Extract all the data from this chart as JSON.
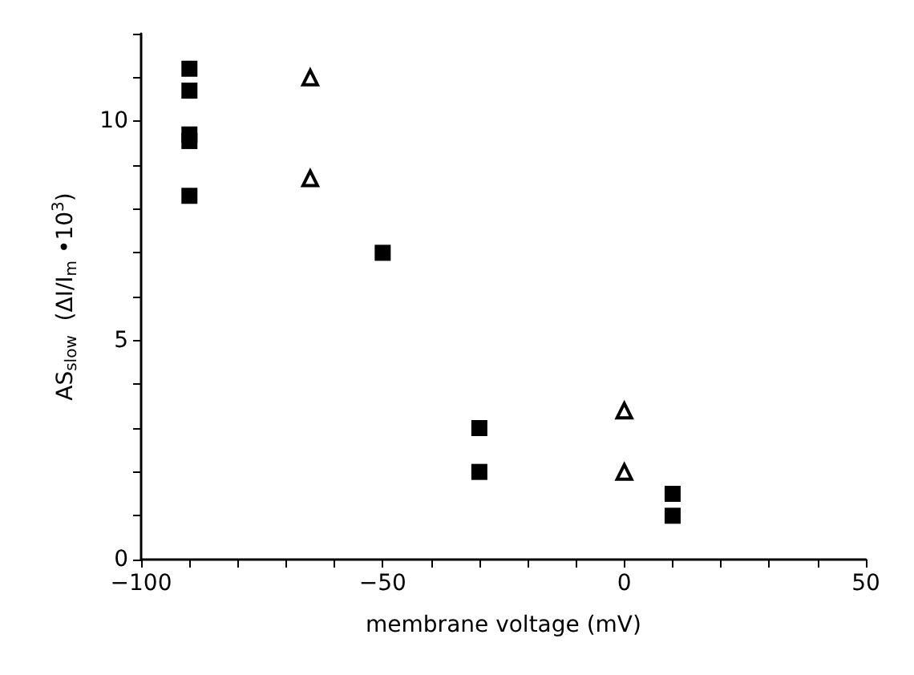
{
  "chart_data": {
    "type": "scatter",
    "xlabel": "membrane voltage (mV)",
    "ylabel": "AS$_{slow}$  (ΔI/I$_{m}$ •10$^{3}$)",
    "series": [
      {
        "color": "#000000",
        "marker": "square",
        "x": [
          -90,
          -90,
          -90,
          -90,
          -90,
          -50,
          -30,
          -30,
          10,
          10
        ],
        "values": [
          11.2,
          10.7,
          9.7,
          9.55,
          8.3,
          7.0,
          3.0,
          2.0,
          1.5,
          1.0
        ]
      },
      {
        "color": "#000000",
        "marker": "triangle",
        "x": [
          -65,
          -65,
          0,
          0
        ],
        "values": [
          11.0,
          8.7,
          3.4,
          2.0
        ]
      }
    ],
    "xlim": [
      -100,
      50
    ],
    "xticks": [
      -100,
      {
        "value": -90,
        "label": null
      },
      {
        "value": -80,
        "label": null
      },
      {
        "value": -70,
        "label": null
      },
      {
        "value": -60,
        "label": null
      },
      -50,
      {
        "value": -40,
        "label": null
      },
      {
        "value": -30,
        "label": null
      },
      {
        "value": -20,
        "label": null
      },
      {
        "value": -10,
        "label": null
      },
      0,
      {
        "value": 10,
        "label": null
      },
      {
        "value": 20,
        "label": null
      },
      {
        "value": 30,
        "label": null
      },
      {
        "value": 40,
        "label": null
      },
      50
    ],
    "ylim": [
      0,
      12
    ],
    "yticks": [
      0,
      {
        "value": 1,
        "label": null
      },
      {
        "value": 2,
        "label": null
      },
      {
        "value": 3,
        "label": null
      },
      {
        "value": 4,
        "label": null
      },
      5,
      {
        "value": 6,
        "label": null
      },
      {
        "value": 7,
        "label": null
      },
      {
        "value": 8,
        "label": null
      },
      {
        "value": 9,
        "label": null
      },
      10,
      {
        "value": 11,
        "label": null
      },
      {
        "value": 12,
        "label": null
      }
    ],
    "tick_labels": "xy"
  }
}
